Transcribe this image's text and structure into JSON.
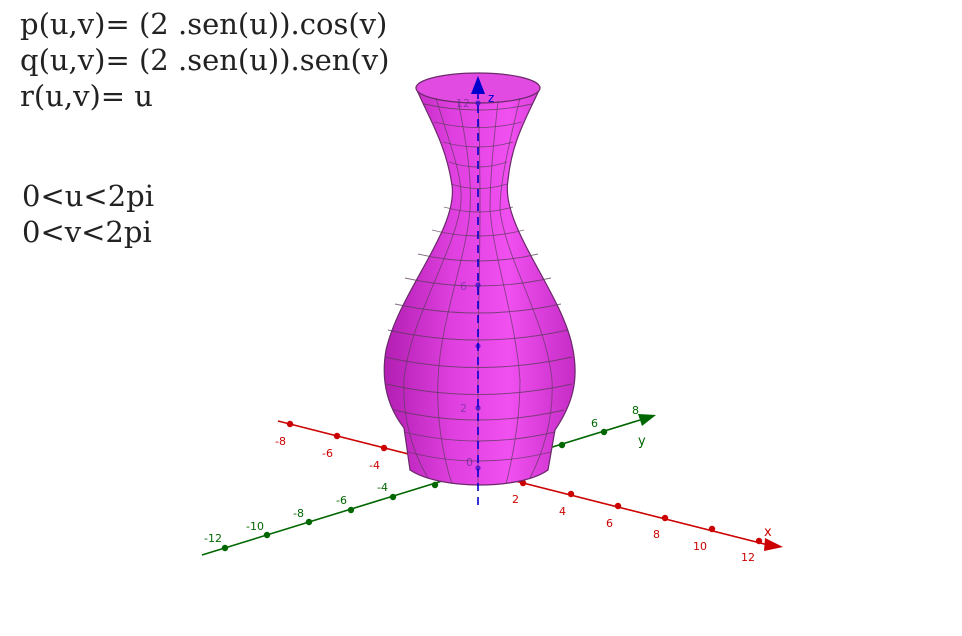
{
  "equations": {
    "p": "p(u,v)= (2 .sen(u)).cos(v)",
    "q": "q(u,v)= (2 .sen(u)).sen(v)",
    "r": "r(u,v)= u"
  },
  "ranges": {
    "u": "0<u<2pi",
    "v": "0<v<2pi"
  },
  "axes": {
    "x": {
      "label": "x",
      "color": "#cc0000",
      "ticks": [
        "-8",
        "-6",
        "-4",
        "2",
        "4",
        "6",
        "8",
        "10",
        "12"
      ]
    },
    "y": {
      "label": "y",
      "color": "#006600",
      "ticks": [
        "-12",
        "-10",
        "-8",
        "-6",
        "-4",
        "6",
        "8"
      ]
    },
    "z": {
      "label": "z",
      "color": "#0000cc",
      "ticks": [
        "12",
        "6",
        "2"
      ]
    },
    "origin": "0"
  },
  "surface": {
    "color": "#e040e0",
    "edge": "#555555"
  }
}
